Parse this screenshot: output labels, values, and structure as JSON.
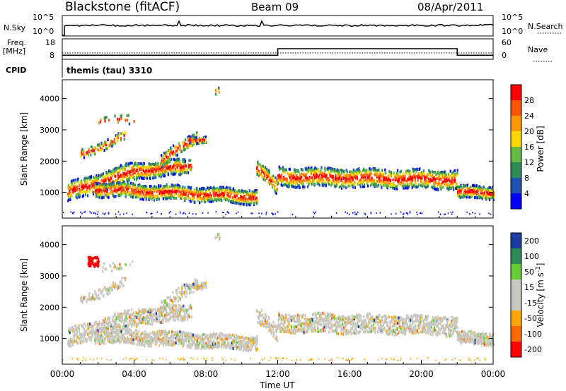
{
  "header": {
    "station": "Blackstone (fitACF)",
    "beam": "Beam 09",
    "date": "08/Apr/2011"
  },
  "colors": {
    "power_scale": [
      "#0000ff",
      "#1f4fb0",
      "#2e8b57",
      "#66bb44",
      "#ffd700",
      "#ff9900",
      "#ff5500",
      "#ff0000"
    ],
    "velocity_scale": [
      "#ff0000",
      "#ff6a00",
      "#ffa500",
      "#c8c8c0",
      "#c8c8c0",
      "#66cc33",
      "#2e8b57",
      "#1f3fa0"
    ],
    "sky": "#000000"
  },
  "chart_data": [
    {
      "type": "line",
      "name": "noise-panel",
      "left_label": "N.Sky",
      "right_label": "N.Search",
      "left_ticks": [
        "10^5",
        "10^0"
      ],
      "right_ticks": [
        "10^5",
        "10^0"
      ],
      "xlim": [
        0,
        24
      ]
    },
    {
      "type": "line",
      "name": "frequency-panel",
      "left_label_1": "Freq.",
      "left_label_2": "[MHz]",
      "right_label": "Nave",
      "left_ticks": [
        "18",
        "8"
      ],
      "right_ticks": [
        "60",
        "0"
      ],
      "cpid_label": "CPID",
      "cpid_text": "themis (tau) 3310",
      "freq_steps": [
        [
          0,
          10.5
        ],
        [
          12.0,
          10.5
        ],
        [
          12.0,
          14.5
        ],
        [
          22.0,
          14.5
        ],
        [
          22.0,
          10.5
        ],
        [
          24,
          10.5
        ]
      ],
      "xlim": [
        0,
        24
      ]
    },
    {
      "type": "heatmap",
      "name": "power-panel",
      "ylabel": "Slant Range [km]",
      "yticks": [
        "1000",
        "2000",
        "3000",
        "4000"
      ],
      "ylim": [
        180,
        4600
      ],
      "colorbar_label": "Power [dB]",
      "colorbar_ticks": [
        "4",
        "8",
        "12",
        "16",
        "20",
        "24",
        "28"
      ],
      "colorbar_range": [
        0,
        32
      ],
      "xlim": [
        0,
        24
      ]
    },
    {
      "type": "heatmap",
      "name": "velocity-panel",
      "ylabel": "Slant Range [km]",
      "yticks": [
        "1000",
        "2000",
        "3000",
        "4000"
      ],
      "ylim": [
        180,
        4600
      ],
      "colorbar_label": "Velocity [m s",
      "colorbar_label_sup": "-1",
      "colorbar_label_end": "]",
      "colorbar_ticks": [
        "-200",
        "-100",
        "-50",
        "-15",
        "15",
        "50",
        "100",
        "200"
      ],
      "xlim": [
        0,
        24
      ],
      "xticks": [
        "00:00",
        "04:00",
        "08:00",
        "12:00",
        "16:00",
        "20:00",
        "00:00"
      ],
      "xlabel": "Time UT"
    }
  ]
}
